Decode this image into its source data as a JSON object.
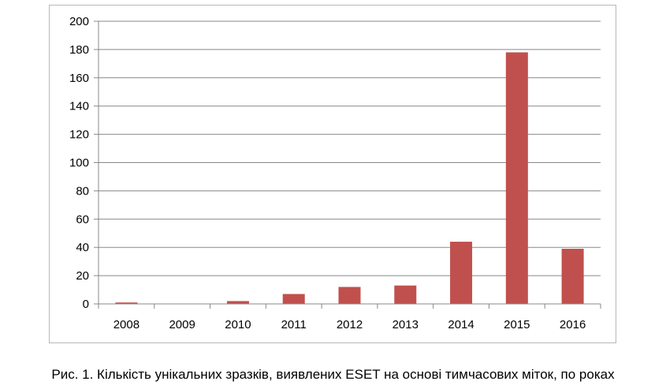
{
  "caption": "Рис. 1. Кількість унікальних зразків, виявлених ESET на основі тимчасових міток, по роках",
  "chart_data": {
    "type": "bar",
    "title": "",
    "xlabel": "",
    "ylabel": "",
    "categories": [
      "2008",
      "2009",
      "2010",
      "2011",
      "2012",
      "2013",
      "2014",
      "2015",
      "2016"
    ],
    "values": [
      1,
      0,
      2,
      7,
      12,
      13,
      44,
      178,
      39
    ],
    "ylim": [
      0,
      200
    ],
    "yticks": [
      0,
      20,
      40,
      60,
      80,
      100,
      120,
      140,
      160,
      180,
      200
    ],
    "grid": true,
    "legend": "none",
    "bar_color": "#c0504d",
    "grid_color": "#888888"
  }
}
